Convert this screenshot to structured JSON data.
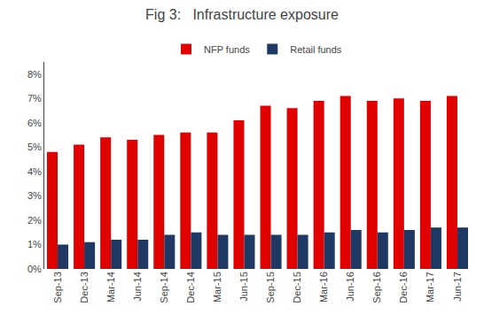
{
  "chart_data": {
    "type": "bar",
    "title": "Fig 3:   Infrastructure exposure",
    "categories": [
      "Sep-13",
      "Dec-13",
      "Mar-14",
      "Jun-14",
      "Sep-14",
      "Dec-14",
      "Mar-15",
      "Jun-15",
      "Sep-15",
      "Dec-15",
      "Mar-16",
      "Jun-16",
      "Sep-16",
      "Dec-16",
      "Mar-17",
      "Jun-17"
    ],
    "series": [
      {
        "name": "NFP funds",
        "color": "#e00000",
        "values": [
          0.048,
          0.051,
          0.054,
          0.053,
          0.055,
          0.056,
          0.056,
          0.061,
          0.067,
          0.066,
          0.069,
          0.071,
          0.069,
          0.07,
          0.069,
          0.071
        ]
      },
      {
        "name": "Retail funds",
        "color": "#1f3864",
        "values": [
          0.01,
          0.011,
          0.012,
          0.012,
          0.014,
          0.015,
          0.014,
          0.014,
          0.014,
          0.014,
          0.015,
          0.016,
          0.015,
          0.016,
          0.017,
          0.017
        ]
      }
    ],
    "ylim": [
      0,
      0.085
    ],
    "yticks": [
      {
        "value": 0,
        "label": "0%"
      },
      {
        "value": 0.01,
        "label": "1%"
      },
      {
        "value": 0.02,
        "label": "2%"
      },
      {
        "value": 0.03,
        "label": "3%"
      },
      {
        "value": 0.04,
        "label": "4%"
      },
      {
        "value": 0.05,
        "label": "5%"
      },
      {
        "value": 0.06,
        "label": "6%"
      },
      {
        "value": 0.07,
        "label": "7%"
      },
      {
        "value": 0.08,
        "label": "8%"
      }
    ],
    "grid": false,
    "legend": "upper center"
  }
}
